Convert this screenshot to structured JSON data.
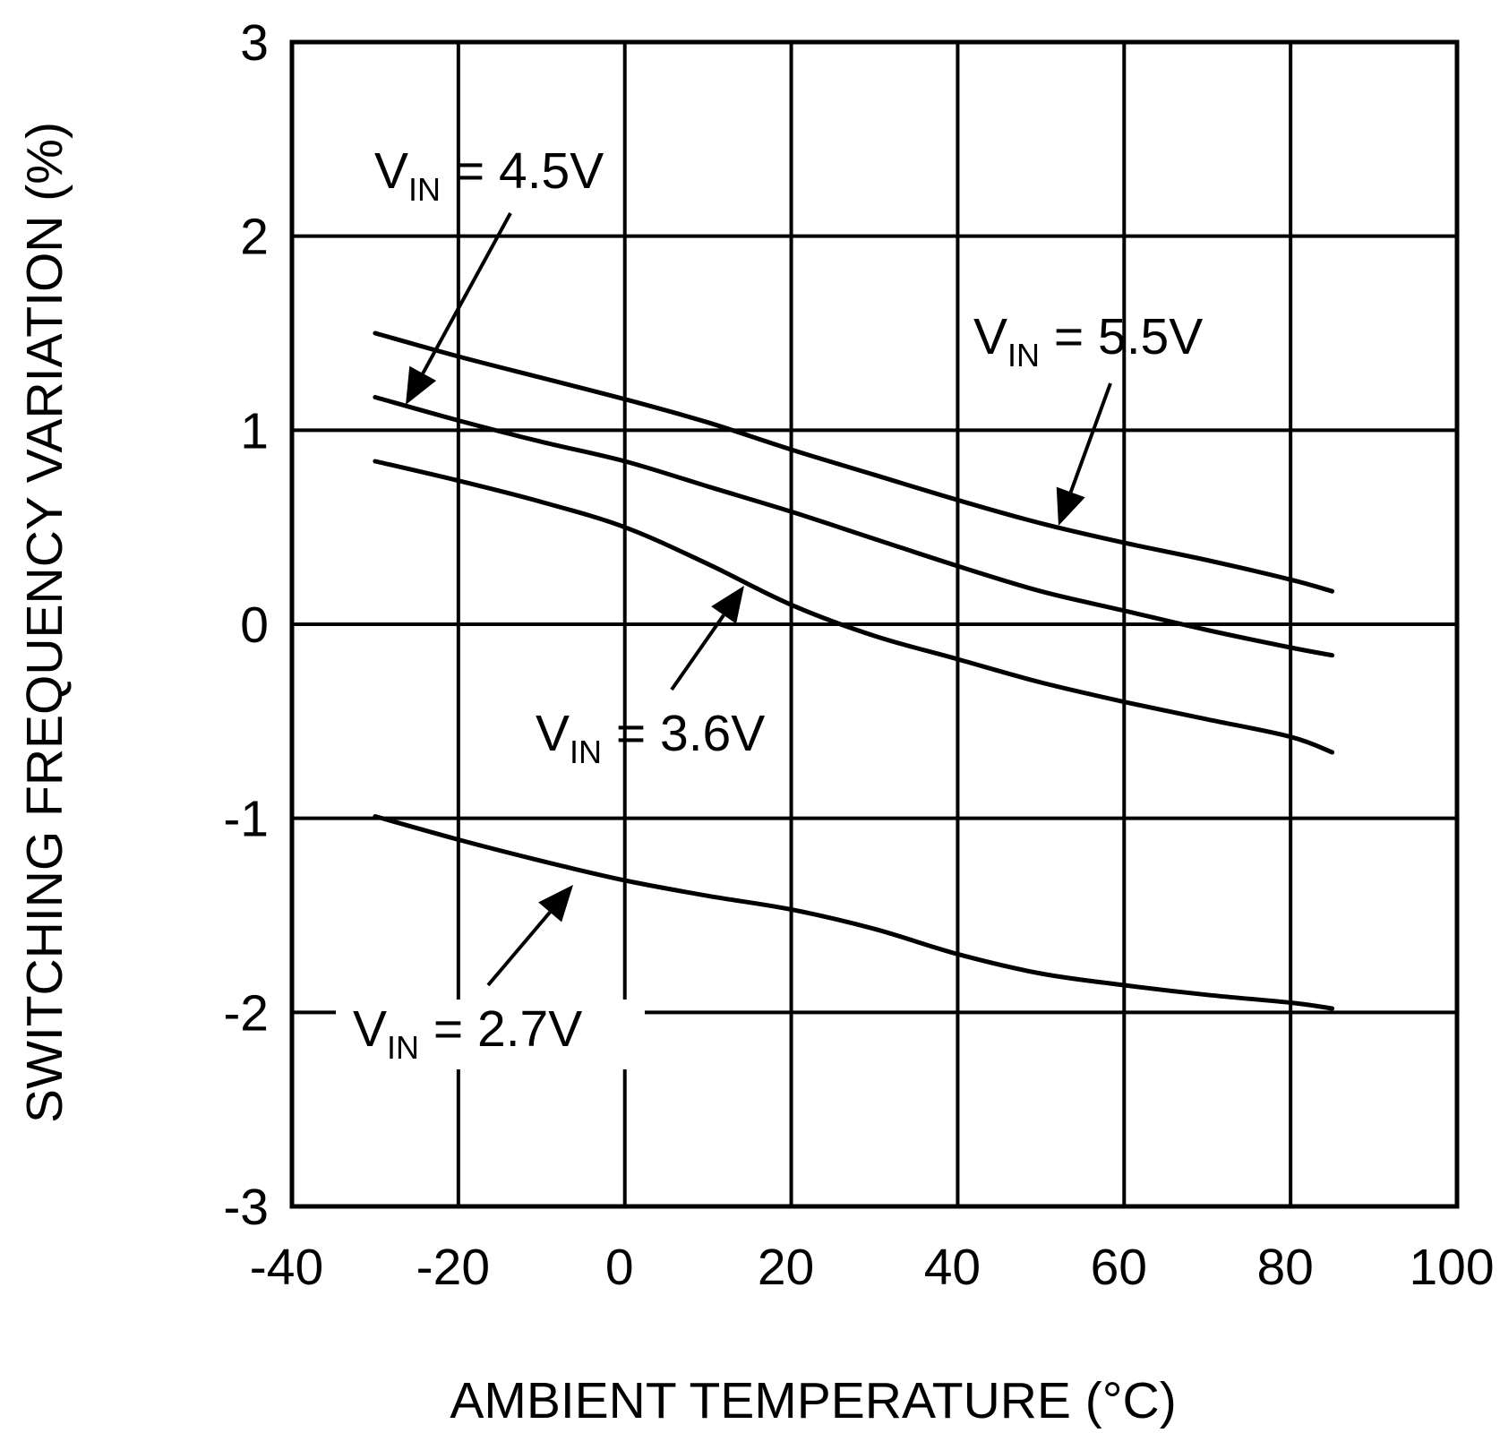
{
  "chart_data": {
    "type": "line",
    "title": "",
    "xlabel": "AMBIENT TEMPERATURE (°C)",
    "ylabel": "SWITCHING FREQUENCY VARIATION (%)",
    "xlim": [
      -40,
      100
    ],
    "ylim": [
      -3,
      3
    ],
    "x_ticks": [
      -40,
      -20,
      0,
      20,
      40,
      60,
      80,
      100
    ],
    "y_ticks": [
      3,
      2,
      1,
      0,
      -1,
      -2,
      -3
    ],
    "x_tick_labels": [
      "-40",
      "-20",
      "0",
      "20",
      "40",
      "60",
      "80",
      "100"
    ],
    "y_tick_labels": [
      "3",
      "2",
      "1",
      "0",
      "-1",
      "-2",
      "-3"
    ],
    "grid": true,
    "x": [
      -30,
      -20,
      -10,
      0,
      10,
      20,
      30,
      40,
      50,
      60,
      70,
      80,
      85
    ],
    "series": [
      {
        "name": "VIN = 5.5V",
        "values": [
          1.5,
          1.38,
          1.27,
          1.16,
          1.04,
          0.9,
          0.77,
          0.64,
          0.52,
          0.42,
          0.33,
          0.23,
          0.17
        ]
      },
      {
        "name": "VIN = 4.5V",
        "values": [
          1.17,
          1.05,
          0.94,
          0.84,
          0.71,
          0.58,
          0.44,
          0.3,
          0.17,
          0.07,
          -0.03,
          -0.12,
          -0.16
        ]
      },
      {
        "name": "VIN = 3.6V",
        "values": [
          0.84,
          0.74,
          0.63,
          0.5,
          0.31,
          0.1,
          -0.06,
          -0.18,
          -0.3,
          -0.4,
          -0.49,
          -0.58,
          -0.66
        ]
      },
      {
        "name": "VIN = 2.7V",
        "values": [
          -0.99,
          -1.11,
          -1.22,
          -1.32,
          -1.4,
          -1.47,
          -1.57,
          -1.7,
          -1.8,
          -1.86,
          -1.91,
          -1.95,
          -1.98
        ]
      }
    ],
    "annotations": [
      {
        "main": "V",
        "sub": "IN",
        "rest": " = 4.5V",
        "series": "VIN = 4.5V"
      },
      {
        "main": "V",
        "sub": "IN",
        "rest": " = 5.5V",
        "series": "VIN = 5.5V"
      },
      {
        "main": "V",
        "sub": "IN",
        "rest": " = 3.6V",
        "series": "VIN = 3.6V"
      },
      {
        "main": "V",
        "sub": "IN",
        "rest": " = 2.7V",
        "series": "VIN = 2.7V"
      }
    ]
  }
}
